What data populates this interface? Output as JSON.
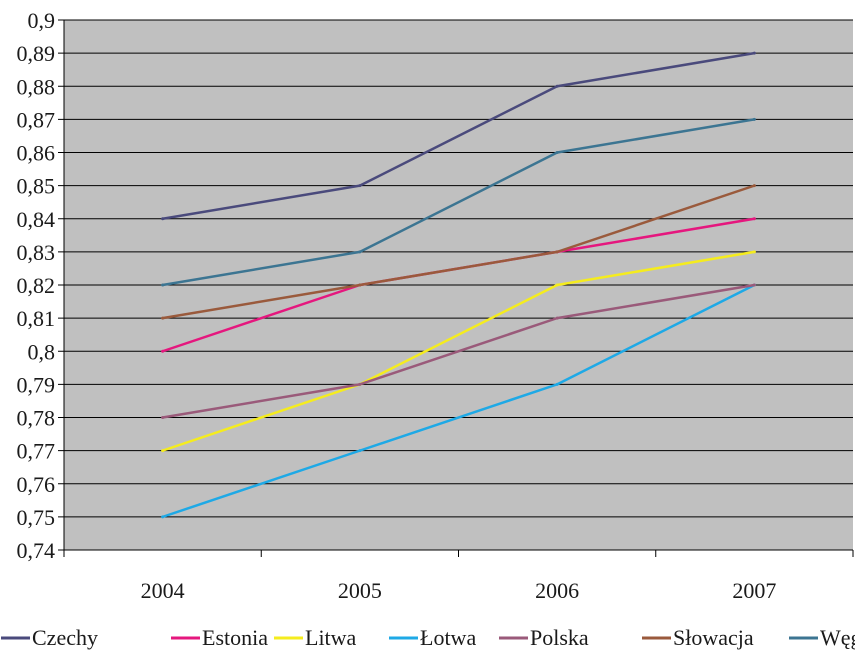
{
  "chart_data": {
    "type": "line",
    "title": "",
    "xlabel": "",
    "ylabel": "",
    "categories": [
      "2004",
      "2005",
      "2006",
      "2007"
    ],
    "ylim": [
      0.74,
      0.9
    ],
    "ystep": 0.01,
    "y_tick_labels": [
      "0,74",
      "0,75",
      "0,76",
      "0,77",
      "0,78",
      "0,79",
      "0,8",
      "0,81",
      "0,82",
      "0,83",
      "0,84",
      "0,85",
      "0,86",
      "0,87",
      "0,88",
      "0,89",
      "0,9"
    ],
    "grid": true,
    "plot_background": "#c0c0c0",
    "legend_position": "bottom",
    "series": [
      {
        "name": "Czechy",
        "color": "#4a4a7c",
        "values": [
          0.84,
          0.85,
          0.88,
          0.89
        ]
      },
      {
        "name": "Estonia",
        "color": "#e5177e",
        "values": [
          0.8,
          0.82,
          0.83,
          0.84
        ]
      },
      {
        "name": "Litwa",
        "color": "#f5ec1e",
        "values": [
          0.77,
          0.79,
          0.82,
          0.83
        ]
      },
      {
        "name": "Łotwa",
        "color": "#1ea9e6",
        "values": [
          0.75,
          0.77,
          0.79,
          0.82
        ]
      },
      {
        "name": "Polska",
        "color": "#9a5a7a",
        "values": [
          0.78,
          0.79,
          0.81,
          0.82
        ]
      },
      {
        "name": "Słowacja",
        "color": "#9a5a3c",
        "values": [
          0.81,
          0.82,
          0.83,
          0.85
        ]
      },
      {
        "name": "Węgry",
        "color": "#3c7592",
        "values": [
          0.82,
          0.83,
          0.86,
          0.87
        ]
      }
    ]
  }
}
